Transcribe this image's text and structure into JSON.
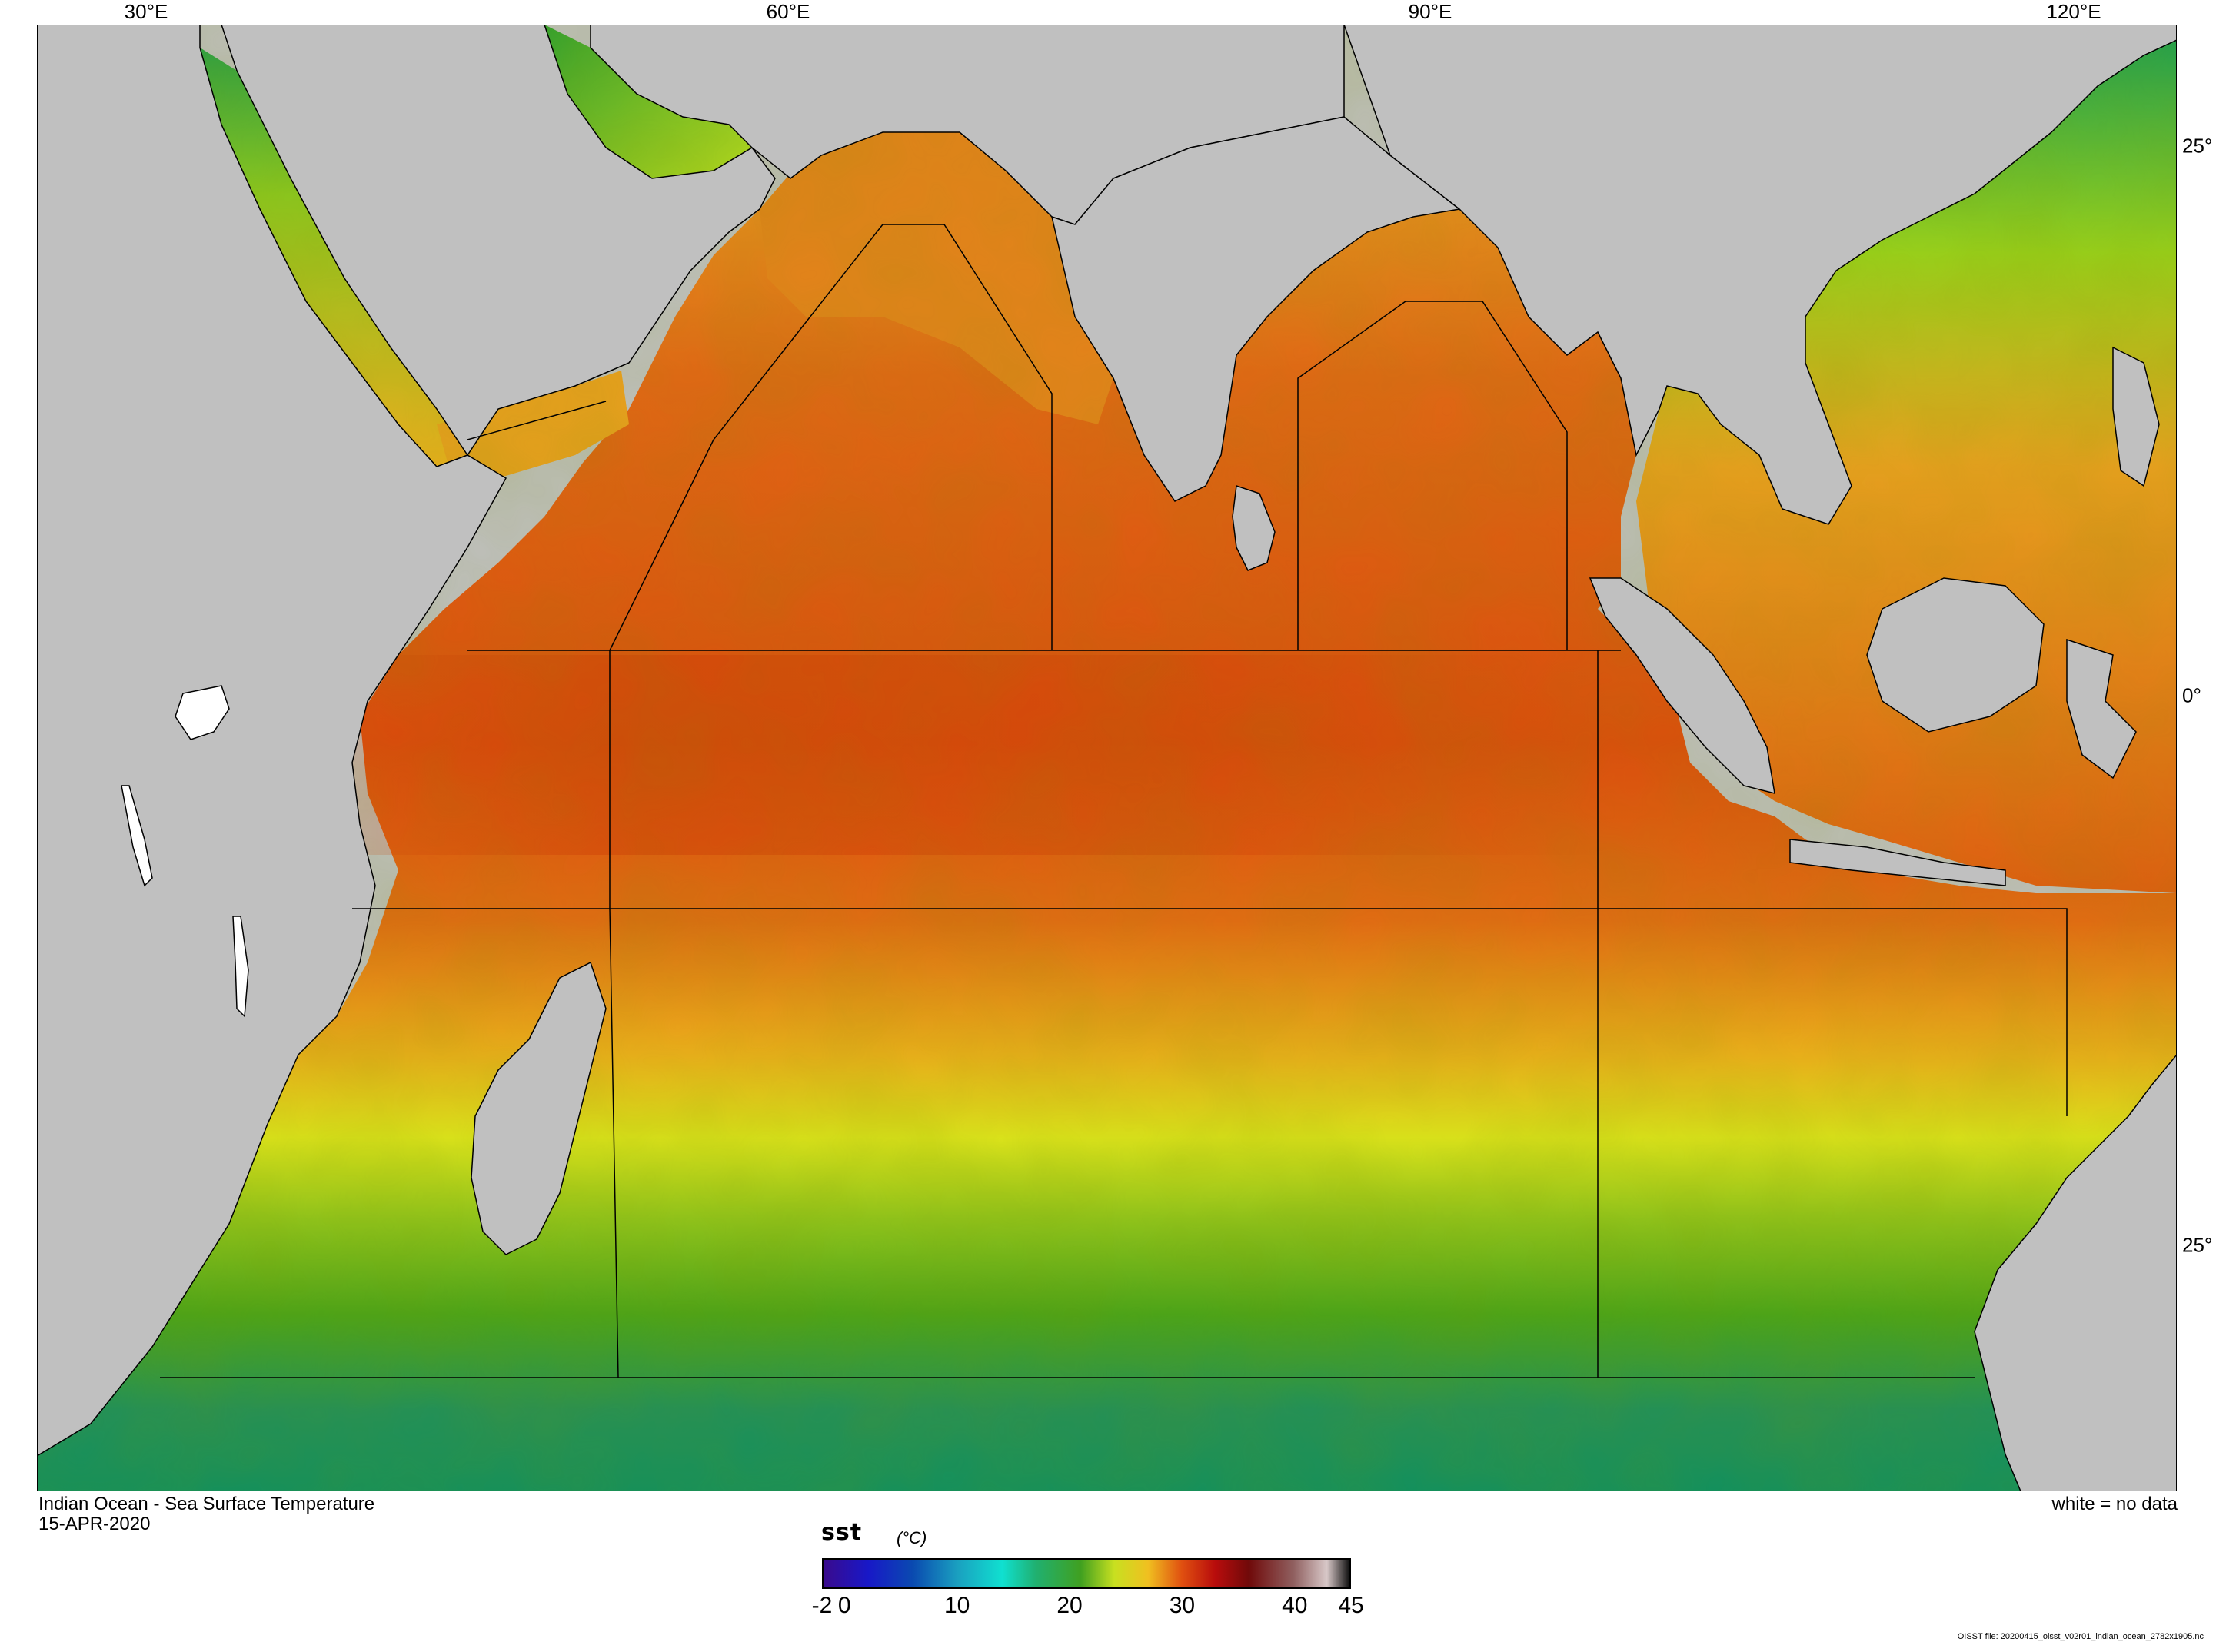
{
  "map": {
    "title": "Indian Ocean - Sea Surface Temperature",
    "date": "15-APR-2020",
    "legend_note": "white = no data",
    "lon_labels": [
      "30°E",
      "60°E",
      "90°E",
      "120°E"
    ],
    "lat_labels": [
      "25°",
      "0°",
      "25°"
    ],
    "file_note": "OISST file: 20200415_oisst_v02r01_indian_ocean_2782x1905.nc",
    "colors": {
      "land": "#c0c0c0",
      "no_data": "#ffffff",
      "coastline": "#000000"
    }
  },
  "colorbar": {
    "variable": "sst",
    "unit": "(°C)",
    "labels": [
      "-2",
      "0",
      "10",
      "20",
      "30",
      "40",
      "45"
    ],
    "range": [
      -2,
      45
    ],
    "stops": [
      {
        "v": -2,
        "c": "#3a0a8c"
      },
      {
        "v": 2,
        "c": "#1818c8"
      },
      {
        "v": 6,
        "c": "#0a4ab0"
      },
      {
        "v": 10,
        "c": "#1aa0c0"
      },
      {
        "v": 14,
        "c": "#10e0d0"
      },
      {
        "v": 17,
        "c": "#20b070"
      },
      {
        "v": 21,
        "c": "#40a020"
      },
      {
        "v": 24,
        "c": "#c8e020"
      },
      {
        "v": 27,
        "c": "#f0c020"
      },
      {
        "v": 30,
        "c": "#e05010"
      },
      {
        "v": 33,
        "c": "#b80c0c"
      },
      {
        "v": 36,
        "c": "#700a0a"
      },
      {
        "v": 40,
        "c": "#906060"
      },
      {
        "v": 43,
        "c": "#d8c8c8"
      },
      {
        "v": 45,
        "c": "#101010"
      }
    ]
  }
}
